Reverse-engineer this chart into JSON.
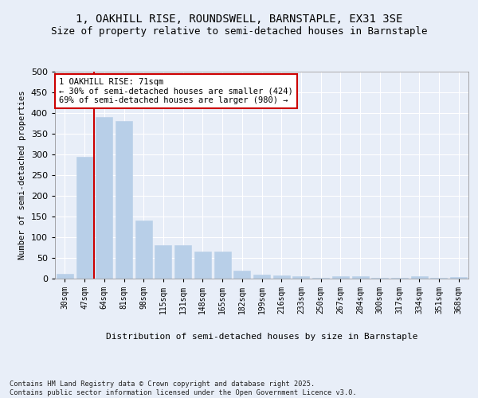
{
  "title": "1, OAKHILL RISE, ROUNDSWELL, BARNSTAPLE, EX31 3SE",
  "subtitle": "Size of property relative to semi-detached houses in Barnstaple",
  "xlabel": "Distribution of semi-detached houses by size in Barnstaple",
  "ylabel": "Number of semi-detached properties",
  "categories": [
    "30sqm",
    "47sqm",
    "64sqm",
    "81sqm",
    "98sqm",
    "115sqm",
    "131sqm",
    "148sqm",
    "165sqm",
    "182sqm",
    "199sqm",
    "216sqm",
    "233sqm",
    "250sqm",
    "267sqm",
    "284sqm",
    "300sqm",
    "317sqm",
    "334sqm",
    "351sqm",
    "368sqm"
  ],
  "values": [
    11,
    295,
    390,
    380,
    140,
    80,
    80,
    65,
    65,
    20,
    10,
    8,
    5,
    2,
    6,
    6,
    2,
    1,
    5,
    2,
    3
  ],
  "bar_color": "#b8cfe8",
  "bar_edge_color": "#b8cfe8",
  "vline_x": 1.5,
  "vline_color": "#cc0000",
  "annotation_text": "1 OAKHILL RISE: 71sqm\n← 30% of semi-detached houses are smaller (424)\n69% of semi-detached houses are larger (980) →",
  "annotation_box_color": "#ffffff",
  "annotation_box_edge": "#cc0000",
  "ylim": [
    0,
    500
  ],
  "yticks": [
    0,
    50,
    100,
    150,
    200,
    250,
    300,
    350,
    400,
    450,
    500
  ],
  "background_color": "#e8eef8",
  "plot_bg_color": "#e8eef8",
  "grid_color": "#ffffff",
  "title_fontsize": 10,
  "subtitle_fontsize": 9,
  "footer": "Contains HM Land Registry data © Crown copyright and database right 2025.\nContains public sector information licensed under the Open Government Licence v3.0."
}
